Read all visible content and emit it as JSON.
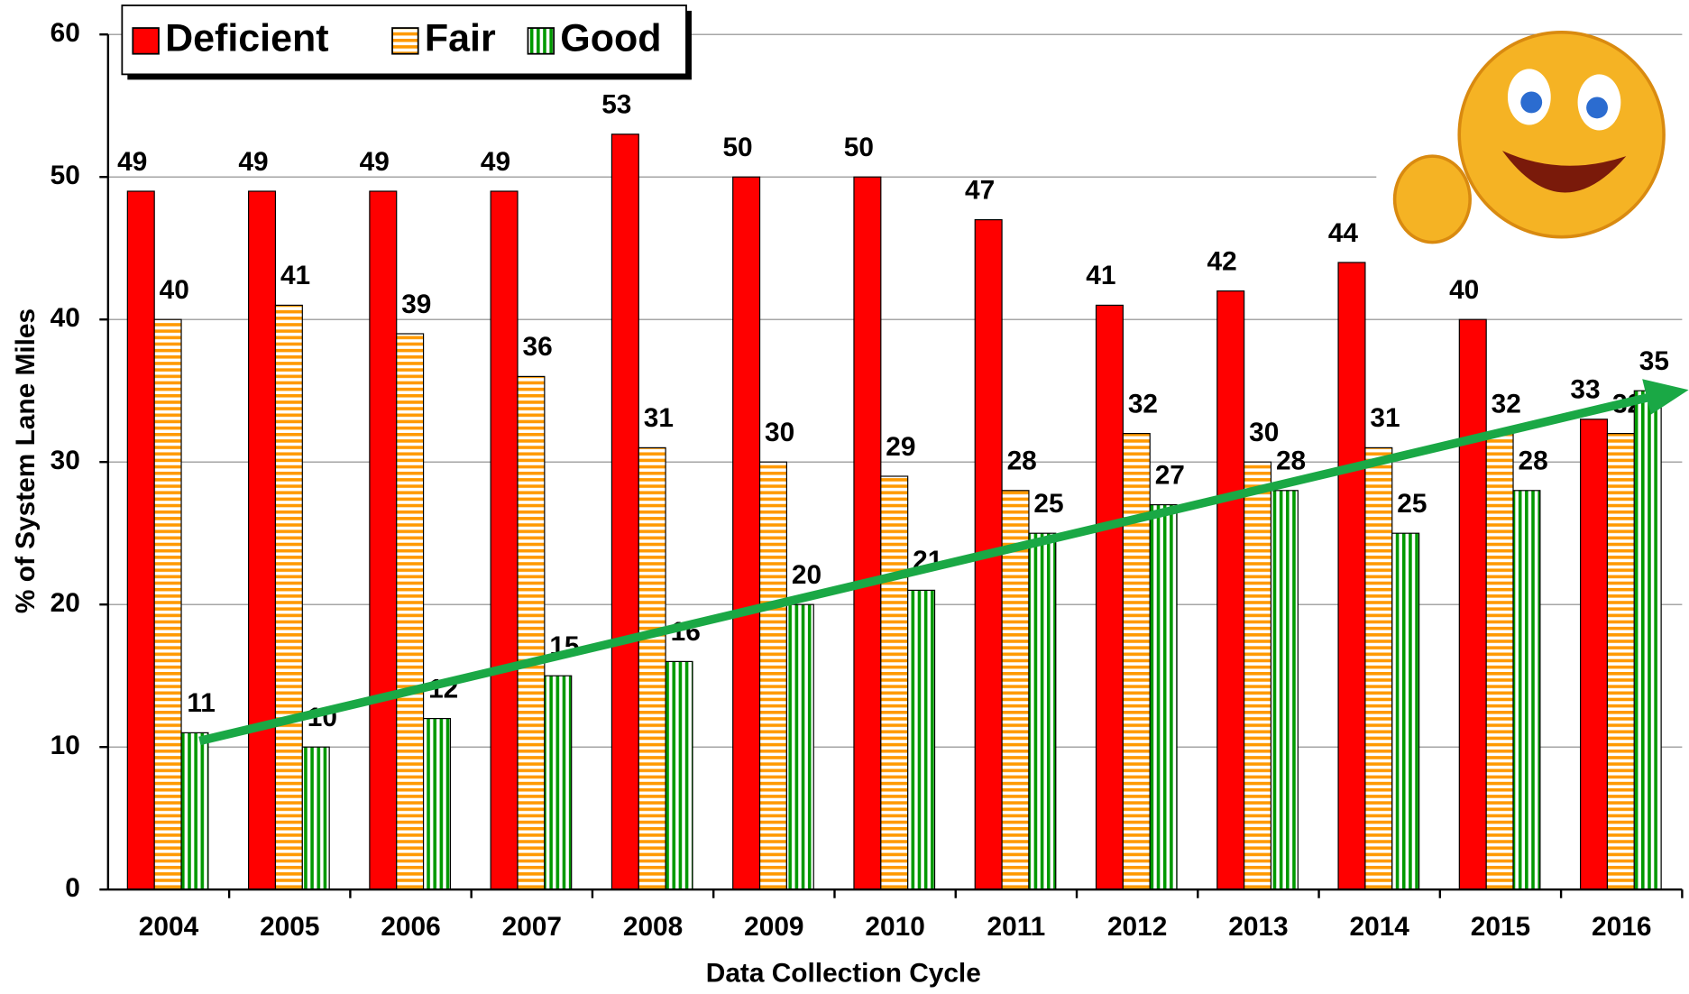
{
  "chart_data": {
    "type": "bar",
    "x_label": "Data Collection Cycle",
    "y_label": "% of System Lane Miles",
    "categories": [
      "2004",
      "2005",
      "2006",
      "2007",
      "2008",
      "2009",
      "2010",
      "2011",
      "2012",
      "2013",
      "2014",
      "2015",
      "2016"
    ],
    "series": [
      {
        "name": "Deficient",
        "color": "#ff0000",
        "values": [
          49,
          49,
          49,
          49,
          53,
          50,
          50,
          47,
          41,
          42,
          44,
          40,
          33
        ]
      },
      {
        "name": "Fair",
        "color": "#ff9900",
        "values": [
          40,
          41,
          39,
          36,
          31,
          30,
          29,
          28,
          32,
          30,
          31,
          32,
          32
        ]
      },
      {
        "name": "Good",
        "color": "#009900",
        "values": [
          11,
          10,
          12,
          15,
          16,
          20,
          21,
          25,
          27,
          28,
          25,
          28,
          35
        ]
      }
    ],
    "ylim": [
      0,
      60
    ],
    "yticks": [
      0,
      10,
      20,
      30,
      40,
      50,
      60
    ],
    "grid": true,
    "legend": "top-left"
  }
}
